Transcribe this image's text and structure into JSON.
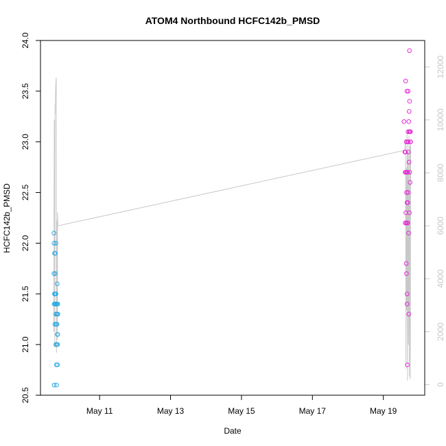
{
  "chart_data": {
    "type": "scatter",
    "title": "ATOM4 Northbound HCFC142b_PMSD",
    "xlabel": "Date",
    "ylabel": "HCFC142b_PMSD",
    "xlim": [
      "2016-05-09T08:00",
      "2016-05-20T04:00"
    ],
    "ylim": [
      20.5,
      24.0
    ],
    "x_ticks": [
      {
        "date": "2016-05-11",
        "label": "May 11"
      },
      {
        "date": "2016-05-13",
        "label": "May 13"
      },
      {
        "date": "2016-05-15",
        "label": "May 15"
      },
      {
        "date": "2016-05-17",
        "label": "May 17"
      },
      {
        "date": "2016-05-19",
        "label": "May 19"
      }
    ],
    "y_ticks": [
      "20.5",
      "21.0",
      "21.5",
      "22.0",
      "22.5",
      "23.0",
      "23.5",
      "24.0"
    ],
    "y2lim": [
      -400,
      13000
    ],
    "y2_ticks": [
      "0",
      "2000",
      "4000",
      "6000",
      "8000",
      "10000",
      "12000"
    ],
    "y2_tick_color": "#c8c8c8",
    "grid": false,
    "legend": "none",
    "series": [
      {
        "color": "#29a9e6",
        "points": [
          [
            "2016-05-09T17:05",
            22.1
          ],
          [
            "2016-05-09T17:10",
            22.0
          ],
          [
            "2016-05-09T17:05",
            21.7
          ],
          [
            "2016-05-09T17:20",
            21.4
          ],
          [
            "2016-05-09T17:25",
            21.5
          ],
          [
            "2016-05-09T17:15",
            20.6
          ],
          [
            "2016-05-09T17:30",
            21.9
          ],
          [
            "2016-05-09T17:35",
            21.5
          ],
          [
            "2016-05-09T17:40",
            21.4
          ],
          [
            "2016-05-09T17:45",
            21.2
          ],
          [
            "2016-05-09T17:55",
            21.9
          ],
          [
            "2016-05-09T18:00",
            21.4
          ],
          [
            "2016-05-09T18:05",
            21.5
          ],
          [
            "2016-05-09T18:05",
            21.7
          ],
          [
            "2016-05-09T18:15",
            21.3
          ],
          [
            "2016-05-09T18:20",
            21.0
          ],
          [
            "2016-05-09T18:25",
            22.0
          ],
          [
            "2016-05-09T18:30",
            21.5
          ],
          [
            "2016-05-09T18:35",
            21.2
          ],
          [
            "2016-05-09T18:40",
            21.4
          ],
          [
            "2016-05-09T18:45",
            20.8
          ],
          [
            "2016-05-09T18:50",
            20.6
          ],
          [
            "2016-05-09T19:00",
            21.3
          ],
          [
            "2016-05-09T19:05",
            21.0
          ],
          [
            "2016-05-09T19:10",
            21.2
          ],
          [
            "2016-05-09T19:15",
            21.4
          ],
          [
            "2016-05-09T19:20",
            21.6
          ],
          [
            "2016-05-09T19:25",
            21.1
          ],
          [
            "2016-05-09T19:30",
            20.8
          ],
          [
            "2016-05-09T19:30",
            21.0
          ],
          [
            "2016-05-09T19:35",
            21.3
          ],
          [
            "2016-05-09T19:40",
            21.1
          ],
          [
            "2016-05-09T19:40",
            21.4
          ],
          [
            "2016-05-09T19:45",
            21.3
          ]
        ]
      },
      {
        "color": "#e52bd4",
        "points": [
          [
            "2016-05-19T14:00",
            23.2
          ],
          [
            "2016-05-19T14:35",
            22.9
          ],
          [
            "2016-05-19T14:45",
            22.7
          ],
          [
            "2016-05-19T14:50",
            22.2
          ],
          [
            "2016-05-19T15:00",
            22.9
          ],
          [
            "2016-05-19T15:05",
            23.6
          ],
          [
            "2016-05-19T15:15",
            22.3
          ],
          [
            "2016-05-19T15:15",
            22.7
          ],
          [
            "2016-05-19T15:25",
            22.2
          ],
          [
            "2016-05-19T15:30",
            23.0
          ],
          [
            "2016-05-19T15:30",
            21.8
          ],
          [
            "2016-05-19T15:40",
            21.7
          ],
          [
            "2016-05-19T15:45",
            22.5
          ],
          [
            "2016-05-19T15:50",
            22.7
          ],
          [
            "2016-05-19T15:55",
            23.5
          ],
          [
            "2016-05-19T16:00",
            22.4
          ],
          [
            "2016-05-19T16:05",
            21.5
          ],
          [
            "2016-05-19T16:05",
            21.4
          ],
          [
            "2016-05-19T16:10",
            22.2
          ],
          [
            "2016-05-19T16:15",
            20.8
          ],
          [
            "2016-05-19T16:20",
            23.0
          ],
          [
            "2016-05-19T16:25",
            22.7
          ],
          [
            "2016-05-19T16:30",
            22.2
          ],
          [
            "2016-05-19T16:35",
            22.4
          ],
          [
            "2016-05-19T16:40",
            23.1
          ],
          [
            "2016-05-19T16:45",
            22.5
          ],
          [
            "2016-05-19T16:50",
            23.5
          ],
          [
            "2016-05-19T16:55",
            22.9
          ],
          [
            "2016-05-19T17:00",
            23.0
          ],
          [
            "2016-05-19T17:05",
            22.1
          ],
          [
            "2016-05-19T17:10",
            21.3
          ],
          [
            "2016-05-19T17:15",
            23.2
          ],
          [
            "2016-05-19T17:20",
            22.8
          ],
          [
            "2016-05-19T17:25",
            23.3
          ],
          [
            "2016-05-19T17:30",
            23.1
          ],
          [
            "2016-05-19T17:35",
            22.3
          ],
          [
            "2016-05-19T17:40",
            23.9
          ],
          [
            "2016-05-19T17:45",
            23.4
          ],
          [
            "2016-05-19T17:50",
            22.7
          ],
          [
            "2016-05-19T17:55",
            23.1
          ],
          [
            "2016-05-19T18:05",
            22.6
          ],
          [
            "2016-05-19T18:15",
            23.0
          ],
          [
            "2016-05-19T18:20",
            23.1
          ],
          [
            "2016-05-19T18:25",
            23.0
          ]
        ]
      }
    ],
    "secondary_line": {
      "color": "#c8c8c8",
      "axis": "right",
      "points": [
        [
          "2016-05-09T17:00",
          2000
        ],
        [
          "2016-05-09T17:20",
          10000
        ],
        [
          "2016-05-09T17:30",
          9000
        ],
        [
          "2016-05-09T17:40",
          1400
        ],
        [
          "2016-05-09T17:50",
          10600
        ],
        [
          "2016-05-09T18:00",
          10200
        ],
        [
          "2016-05-09T18:10",
          11000
        ],
        [
          "2016-05-09T18:20",
          11300
        ],
        [
          "2016-05-09T18:40",
          11600
        ],
        [
          "2016-05-09T18:50",
          1200
        ],
        [
          "2016-05-09T19:00",
          5800
        ],
        [
          "2016-05-09T19:05",
          5600
        ],
        [
          "2016-05-09T19:15",
          6200
        ],
        [
          "2016-05-09T19:25",
          1700
        ],
        [
          "2016-05-09T19:35",
          6500
        ],
        [
          "2016-05-09T19:45",
          6000
        ],
        [
          "2016-05-19T14:30",
          8850
        ],
        [
          "2016-05-19T15:00",
          9300
        ],
        [
          "2016-05-19T15:20",
          600
        ],
        [
          "2016-05-19T15:35",
          8200
        ],
        [
          "2016-05-19T15:50",
          2800
        ],
        [
          "2016-05-19T16:05",
          9500
        ],
        [
          "2016-05-19T16:20",
          150
        ],
        [
          "2016-05-19T16:40",
          8800
        ],
        [
          "2016-05-19T17:00",
          1500
        ],
        [
          "2016-05-19T17:20",
          9400
        ],
        [
          "2016-05-19T17:40",
          300
        ],
        [
          "2016-05-19T18:00",
          9000
        ],
        [
          "2016-05-19T18:15",
          200
        ],
        [
          "2016-05-19T18:30",
          9100
        ]
      ]
    }
  }
}
